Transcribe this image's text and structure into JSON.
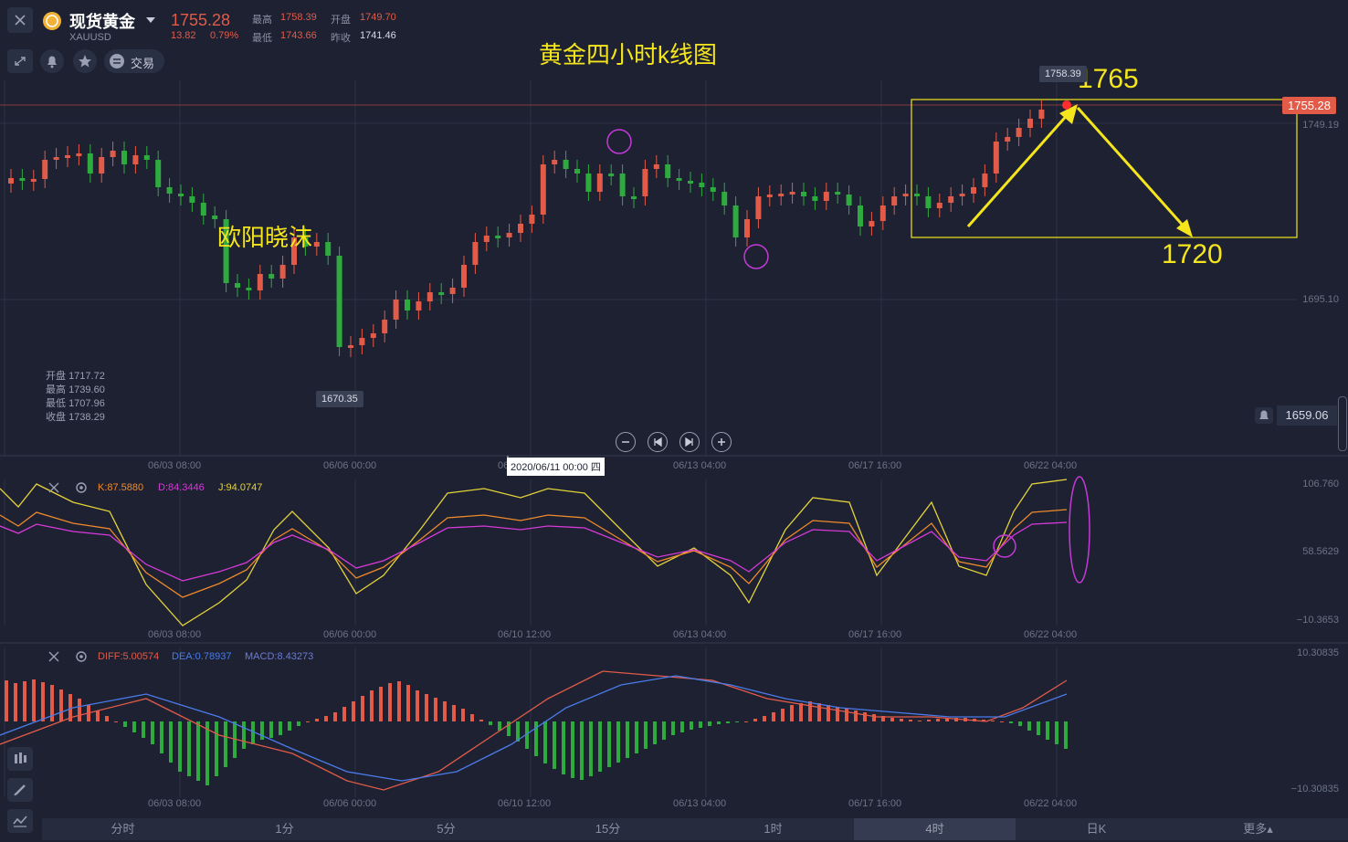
{
  "header": {
    "symbol_name": "现货黄金",
    "symbol_code": "XAUUSD",
    "price": "1755.28",
    "change": "13.82",
    "change_pct": "0.79%",
    "high_label": "最高",
    "high": "1758.39",
    "open_label": "开盘",
    "open": "1749.70",
    "low_label": "最低",
    "low": "1743.66",
    "prev_label": "昨收",
    "prev": "1741.46",
    "trade_label": "交易"
  },
  "chart": {
    "title": "黄金四小时k线图",
    "author": "欧阳晓沫",
    "annot_up": "1765",
    "annot_down": "1720",
    "hi_marker": "1758.39",
    "lo_marker": "1670.35",
    "current_price": "1755.28",
    "right_price": "1659.06",
    "y_labels": [
      "1749.19",
      "1695.10"
    ],
    "x_labels": [
      "06/03 08:00",
      "06/06 00:00",
      "06/13 04:00",
      "06/17 16:00",
      "06/22 04:00"
    ],
    "crosshair_date": "2020/06/11 00:00 四",
    "crosshair_prefix": "06",
    "ohlc_info": [
      {
        "label": "开盘",
        "value": "1717.72"
      },
      {
        "label": "最高",
        "value": "1739.60"
      },
      {
        "label": "最低",
        "value": "1707.96"
      },
      {
        "label": "收盘",
        "value": "1738.29"
      }
    ],
    "colors": {
      "up": "#e25b48",
      "down": "#2eab3e",
      "annotation": "#f5e51c",
      "circle": "#c43ad6"
    }
  },
  "kdj": {
    "k_label": "K:87.5880",
    "d_label": "D:84.3446",
    "j_label": "J:94.0747",
    "y_labels": [
      "106.760",
      "58.5629",
      "−10.3653"
    ],
    "x_labels": [
      "06/03 08:00",
      "06/06 00:00",
      "06/10 12:00",
      "06/13 04:00",
      "06/17 16:00",
      "06/22 04:00"
    ],
    "colors": {
      "k": "#ee8a2c",
      "d": "#d63ad8",
      "j": "#e4d33a"
    }
  },
  "macd": {
    "diff_label": "DIFF:5.00574",
    "dea_label": "DEA:0.78937",
    "macd_label": "MACD:8.43273",
    "y_labels": [
      "10.30835",
      "−10.30835"
    ],
    "x_labels": [
      "06/03 08:00",
      "06/06 00:00",
      "06/10 12:00",
      "06/13 04:00",
      "06/17 16:00",
      "06/22 04:00"
    ],
    "colors": {
      "diff": "#e25b48",
      "dea": "#4b7be8",
      "macd": "#6b7bd6"
    }
  },
  "timeframes": [
    "分时",
    "1分",
    "5分",
    "15分",
    "1时",
    "4时",
    "日K",
    "更多▴"
  ],
  "active_timeframe": "4时",
  "icons": [
    "close-icon",
    "gold-coin-icon",
    "chevron-down-icon",
    "fullscreen-icon",
    "bell-icon",
    "star-icon",
    "trade-icon",
    "settings-icon",
    "candle-tool-icon",
    "pen-icon",
    "indicator-icon"
  ]
}
